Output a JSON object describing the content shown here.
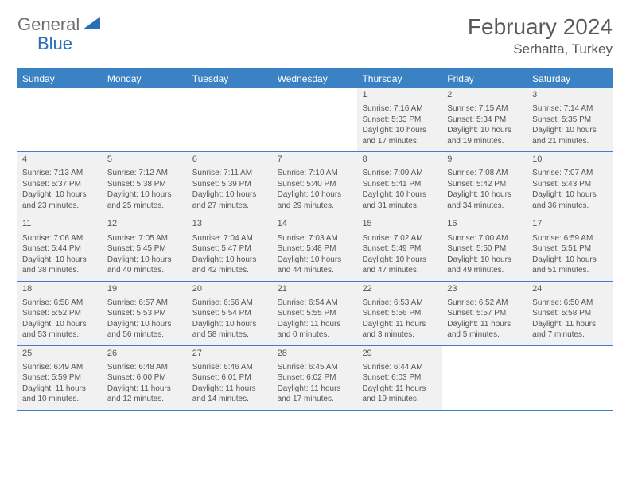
{
  "logo": {
    "text1": "General",
    "text2": "Blue",
    "accent_color": "#2a6db8",
    "gray_color": "#6f6f6f"
  },
  "title": "February 2024",
  "location": "Serhatta, Turkey",
  "header_bar_color": "#3b82c4",
  "cell_bg_color": "#f1f1f1",
  "text_color": "#555555",
  "weekdays": [
    "Sunday",
    "Monday",
    "Tuesday",
    "Wednesday",
    "Thursday",
    "Friday",
    "Saturday"
  ],
  "weeks": [
    [
      {
        "blank": true
      },
      {
        "blank": true
      },
      {
        "blank": true
      },
      {
        "blank": true
      },
      {
        "day": "1",
        "sunrise": "Sunrise: 7:16 AM",
        "sunset": "Sunset: 5:33 PM",
        "daylight": "Daylight: 10 hours and 17 minutes."
      },
      {
        "day": "2",
        "sunrise": "Sunrise: 7:15 AM",
        "sunset": "Sunset: 5:34 PM",
        "daylight": "Daylight: 10 hours and 19 minutes."
      },
      {
        "day": "3",
        "sunrise": "Sunrise: 7:14 AM",
        "sunset": "Sunset: 5:35 PM",
        "daylight": "Daylight: 10 hours and 21 minutes."
      }
    ],
    [
      {
        "day": "4",
        "sunrise": "Sunrise: 7:13 AM",
        "sunset": "Sunset: 5:37 PM",
        "daylight": "Daylight: 10 hours and 23 minutes."
      },
      {
        "day": "5",
        "sunrise": "Sunrise: 7:12 AM",
        "sunset": "Sunset: 5:38 PM",
        "daylight": "Daylight: 10 hours and 25 minutes."
      },
      {
        "day": "6",
        "sunrise": "Sunrise: 7:11 AM",
        "sunset": "Sunset: 5:39 PM",
        "daylight": "Daylight: 10 hours and 27 minutes."
      },
      {
        "day": "7",
        "sunrise": "Sunrise: 7:10 AM",
        "sunset": "Sunset: 5:40 PM",
        "daylight": "Daylight: 10 hours and 29 minutes."
      },
      {
        "day": "8",
        "sunrise": "Sunrise: 7:09 AM",
        "sunset": "Sunset: 5:41 PM",
        "daylight": "Daylight: 10 hours and 31 minutes."
      },
      {
        "day": "9",
        "sunrise": "Sunrise: 7:08 AM",
        "sunset": "Sunset: 5:42 PM",
        "daylight": "Daylight: 10 hours and 34 minutes."
      },
      {
        "day": "10",
        "sunrise": "Sunrise: 7:07 AM",
        "sunset": "Sunset: 5:43 PM",
        "daylight": "Daylight: 10 hours and 36 minutes."
      }
    ],
    [
      {
        "day": "11",
        "sunrise": "Sunrise: 7:06 AM",
        "sunset": "Sunset: 5:44 PM",
        "daylight": "Daylight: 10 hours and 38 minutes."
      },
      {
        "day": "12",
        "sunrise": "Sunrise: 7:05 AM",
        "sunset": "Sunset: 5:45 PM",
        "daylight": "Daylight: 10 hours and 40 minutes."
      },
      {
        "day": "13",
        "sunrise": "Sunrise: 7:04 AM",
        "sunset": "Sunset: 5:47 PM",
        "daylight": "Daylight: 10 hours and 42 minutes."
      },
      {
        "day": "14",
        "sunrise": "Sunrise: 7:03 AM",
        "sunset": "Sunset: 5:48 PM",
        "daylight": "Daylight: 10 hours and 44 minutes."
      },
      {
        "day": "15",
        "sunrise": "Sunrise: 7:02 AM",
        "sunset": "Sunset: 5:49 PM",
        "daylight": "Daylight: 10 hours and 47 minutes."
      },
      {
        "day": "16",
        "sunrise": "Sunrise: 7:00 AM",
        "sunset": "Sunset: 5:50 PM",
        "daylight": "Daylight: 10 hours and 49 minutes."
      },
      {
        "day": "17",
        "sunrise": "Sunrise: 6:59 AM",
        "sunset": "Sunset: 5:51 PM",
        "daylight": "Daylight: 10 hours and 51 minutes."
      }
    ],
    [
      {
        "day": "18",
        "sunrise": "Sunrise: 6:58 AM",
        "sunset": "Sunset: 5:52 PM",
        "daylight": "Daylight: 10 hours and 53 minutes."
      },
      {
        "day": "19",
        "sunrise": "Sunrise: 6:57 AM",
        "sunset": "Sunset: 5:53 PM",
        "daylight": "Daylight: 10 hours and 56 minutes."
      },
      {
        "day": "20",
        "sunrise": "Sunrise: 6:56 AM",
        "sunset": "Sunset: 5:54 PM",
        "daylight": "Daylight: 10 hours and 58 minutes."
      },
      {
        "day": "21",
        "sunrise": "Sunrise: 6:54 AM",
        "sunset": "Sunset: 5:55 PM",
        "daylight": "Daylight: 11 hours and 0 minutes."
      },
      {
        "day": "22",
        "sunrise": "Sunrise: 6:53 AM",
        "sunset": "Sunset: 5:56 PM",
        "daylight": "Daylight: 11 hours and 3 minutes."
      },
      {
        "day": "23",
        "sunrise": "Sunrise: 6:52 AM",
        "sunset": "Sunset: 5:57 PM",
        "daylight": "Daylight: 11 hours and 5 minutes."
      },
      {
        "day": "24",
        "sunrise": "Sunrise: 6:50 AM",
        "sunset": "Sunset: 5:58 PM",
        "daylight": "Daylight: 11 hours and 7 minutes."
      }
    ],
    [
      {
        "day": "25",
        "sunrise": "Sunrise: 6:49 AM",
        "sunset": "Sunset: 5:59 PM",
        "daylight": "Daylight: 11 hours and 10 minutes."
      },
      {
        "day": "26",
        "sunrise": "Sunrise: 6:48 AM",
        "sunset": "Sunset: 6:00 PM",
        "daylight": "Daylight: 11 hours and 12 minutes."
      },
      {
        "day": "27",
        "sunrise": "Sunrise: 6:46 AM",
        "sunset": "Sunset: 6:01 PM",
        "daylight": "Daylight: 11 hours and 14 minutes."
      },
      {
        "day": "28",
        "sunrise": "Sunrise: 6:45 AM",
        "sunset": "Sunset: 6:02 PM",
        "daylight": "Daylight: 11 hours and 17 minutes."
      },
      {
        "day": "29",
        "sunrise": "Sunrise: 6:44 AM",
        "sunset": "Sunset: 6:03 PM",
        "daylight": "Daylight: 11 hours and 19 minutes."
      },
      {
        "blank": true
      },
      {
        "blank": true
      }
    ]
  ]
}
